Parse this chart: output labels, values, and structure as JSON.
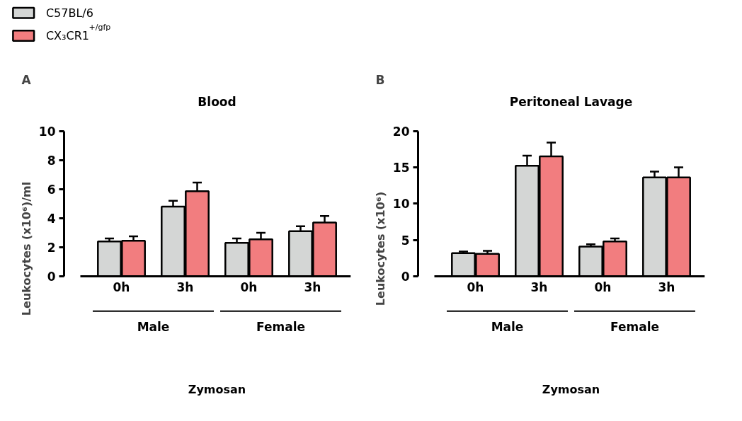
{
  "chart_data": [
    {
      "type": "bar",
      "title": "Blood",
      "xlabel": "Zymosan",
      "ylabel": "Leukocytes (x10⁶)/ml",
      "categories": [
        "0h",
        "3h",
        "0h",
        "3h"
      ],
      "series": [
        {
          "name": "C57BL/6",
          "color": "#d4d6d5",
          "values": [
            2.4,
            4.8,
            2.3,
            3.1
          ],
          "errors": [
            [
              2.4,
              2.6
            ],
            [
              4.8,
              5.2
            ],
            [
              2.3,
              2.6
            ],
            [
              3.1,
              3.45
            ]
          ]
        },
        {
          "name": "CX₃CR1$^{+/gfp}$",
          "color": "#f27d7f",
          "values": [
            2.45,
            5.85,
            2.55,
            3.7
          ],
          "errors": [
            [
              2.45,
              2.75
            ],
            [
              5.85,
              6.45
            ],
            [
              2.55,
              3.0
            ],
            [
              3.7,
              4.15
            ]
          ]
        }
      ],
      "ylim": [
        0,
        10
      ],
      "yticks": [
        0,
        2,
        4,
        6,
        8,
        10
      ],
      "grid": false,
      "legend": "top left",
      "annotations": [
        "A",
        "Male",
        "Female"
      ]
    },
    {
      "type": "bar",
      "title": "Peritoneal Lavage",
      "xlabel": "Zymosan",
      "ylabel": "Leukocytes (x10⁶)",
      "categories": [
        "0h",
        "3h",
        "0h",
        "3h"
      ],
      "series": [
        {
          "color": "#d4d6d5",
          "values": [
            3.2,
            15.2,
            4.1,
            13.6
          ],
          "errors": [
            [
              3.2,
              3.4
            ],
            [
              15.2,
              16.6
            ],
            [
              4.1,
              4.4
            ],
            [
              13.6,
              14.4
            ]
          ]
        },
        {
          "color": "#f27d7f",
          "values": [
            3.1,
            16.5,
            4.8,
            13.6
          ],
          "errors": [
            [
              3.1,
              3.5
            ],
            [
              16.5,
              18.4
            ],
            [
              4.8,
              5.2
            ],
            [
              13.6,
              15.0
            ]
          ]
        }
      ],
      "ylim": [
        0,
        20
      ],
      "yticks": [
        0,
        5,
        10,
        15,
        20
      ],
      "grid": false,
      "annotations": [
        "B",
        "Male",
        "Female"
      ]
    }
  ]
}
